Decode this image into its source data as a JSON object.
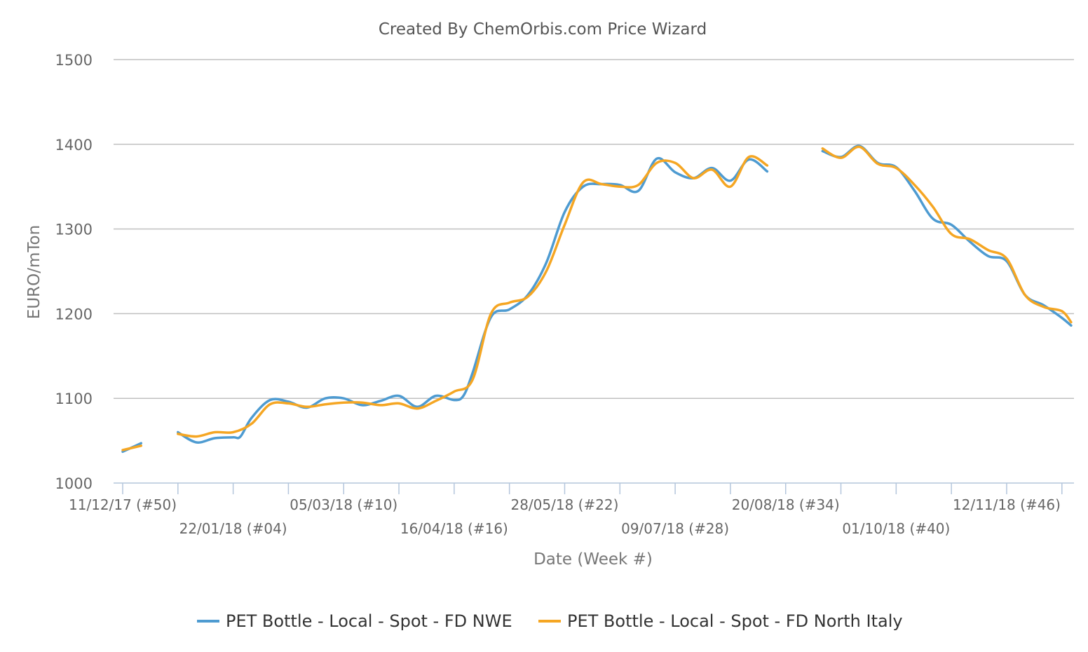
{
  "chart_data": {
    "type": "line",
    "title": "Created By ChemOrbis.com Price Wizard",
    "xlabel": "Date (Week #)",
    "ylabel": "EURO/mTon",
    "ylim": [
      1000,
      1500
    ],
    "yticks": [
      1000,
      1100,
      1200,
      1300,
      1400,
      1500
    ],
    "grid": true,
    "legend_position": "bottom",
    "x_tick_labels": [
      {
        "week": 0,
        "label": "11/12/17 (#50)"
      },
      {
        "week": 6,
        "label": "22/01/18 (#04)"
      },
      {
        "week": 12,
        "label": "05/03/18 (#10)"
      },
      {
        "week": 18,
        "label": "16/04/18 (#16)"
      },
      {
        "week": 24,
        "label": "28/05/18 (#22)"
      },
      {
        "week": 30,
        "label": "09/07/18 (#28)"
      },
      {
        "week": 36,
        "label": "20/08/18 (#34)"
      },
      {
        "week": 42,
        "label": "01/10/18 (#40)"
      },
      {
        "week": 48,
        "label": "12/11/18 (#46)"
      }
    ],
    "x_range_weeks": [
      -0.5,
      51.5
    ],
    "series": [
      {
        "name": "PET Bottle - Local - Spot - FD NWE",
        "color": "#4e9bd1",
        "points": [
          [
            0,
            1037
          ],
          [
            1,
            1047
          ],
          [
            2,
            null
          ],
          [
            3,
            1060
          ],
          [
            4,
            1048
          ],
          [
            5,
            1053
          ],
          [
            6,
            1054
          ],
          [
            6.4,
            1055
          ],
          [
            7,
            1077
          ],
          [
            8,
            1098
          ],
          [
            9,
            1096
          ],
          [
            10,
            1089
          ],
          [
            11,
            1100
          ],
          [
            12,
            1100
          ],
          [
            13,
            1092
          ],
          [
            14,
            1097
          ],
          [
            15,
            1103
          ],
          [
            16,
            1090
          ],
          [
            17,
            1103
          ],
          [
            18,
            1098
          ],
          [
            18.5,
            1103
          ],
          [
            19,
            1130
          ],
          [
            20,
            1196
          ],
          [
            21,
            1205
          ],
          [
            22,
            1222
          ],
          [
            23,
            1260
          ],
          [
            24,
            1320
          ],
          [
            25,
            1350
          ],
          [
            26,
            1353
          ],
          [
            27,
            1352
          ],
          [
            28,
            1345
          ],
          [
            29,
            1383
          ],
          [
            30,
            1367
          ],
          [
            31,
            1360
          ],
          [
            32,
            1372
          ],
          [
            33,
            1357
          ],
          [
            34,
            1382
          ],
          [
            35,
            1368
          ],
          [
            36,
            null
          ],
          [
            38,
            1392
          ],
          [
            39,
            1385
          ],
          [
            40,
            1398
          ],
          [
            41,
            1378
          ],
          [
            42,
            1373
          ],
          [
            43,
            1345
          ],
          [
            44,
            1312
          ],
          [
            45,
            1305
          ],
          [
            46,
            1285
          ],
          [
            47,
            1268
          ],
          [
            48,
            1262
          ],
          [
            49,
            1222
          ],
          [
            50,
            1210
          ],
          [
            51,
            1195
          ],
          [
            51.5,
            1186
          ]
        ]
      },
      {
        "name": "PET Bottle - Local - Spot - FD North Italy",
        "color": "#f5a623",
        "points": [
          [
            0,
            1039
          ],
          [
            1,
            1044
          ],
          [
            2,
            null
          ],
          [
            3,
            1058
          ],
          [
            4,
            1055
          ],
          [
            5,
            1060
          ],
          [
            6,
            1060
          ],
          [
            7,
            1070
          ],
          [
            8,
            1093
          ],
          [
            9,
            1094
          ],
          [
            10,
            1090
          ],
          [
            11,
            1093
          ],
          [
            12,
            1095
          ],
          [
            13,
            1095
          ],
          [
            14,
            1092
          ],
          [
            15,
            1094
          ],
          [
            16,
            1088
          ],
          [
            17,
            1097
          ],
          [
            18,
            1108
          ],
          [
            19,
            1122
          ],
          [
            20,
            1200
          ],
          [
            21,
            1213
          ],
          [
            22,
            1220
          ],
          [
            23,
            1250
          ],
          [
            24,
            1305
          ],
          [
            25,
            1355
          ],
          [
            26,
            1353
          ],
          [
            27,
            1350
          ],
          [
            28,
            1352
          ],
          [
            29,
            1378
          ],
          [
            30,
            1378
          ],
          [
            31,
            1360
          ],
          [
            32,
            1370
          ],
          [
            33,
            1350
          ],
          [
            34,
            1385
          ],
          [
            35,
            1375
          ],
          [
            36,
            null
          ],
          [
            38,
            1395
          ],
          [
            39,
            1384
          ],
          [
            40,
            1397
          ],
          [
            41,
            1377
          ],
          [
            42,
            1372
          ],
          [
            43,
            1352
          ],
          [
            44,
            1326
          ],
          [
            45,
            1294
          ],
          [
            46,
            1288
          ],
          [
            47,
            1275
          ],
          [
            48,
            1265
          ],
          [
            49,
            1222
          ],
          [
            50,
            1208
          ],
          [
            51,
            1203
          ],
          [
            51.5,
            1190
          ]
        ]
      }
    ]
  }
}
